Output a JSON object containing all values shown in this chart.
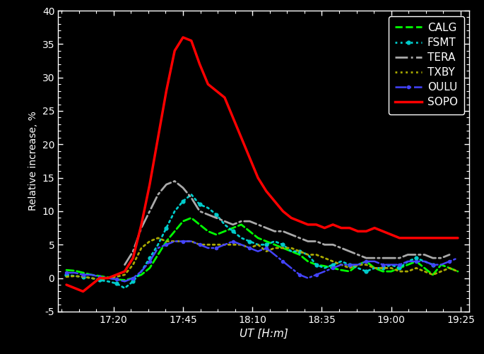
{
  "background_color": "#000000",
  "text_color": "#ffffff",
  "xlabel": "UT [H:m]",
  "ylabel": "Relative increase, %",
  "ylim": [
    -5,
    40
  ],
  "yticks": [
    -5,
    0,
    5,
    10,
    15,
    20,
    25,
    30,
    35,
    40
  ],
  "xtick_labels": [
    "17:20",
    "17:45",
    "18:10",
    "18:35",
    "19:00",
    "19:25"
  ],
  "xlim_min": 17.0,
  "xlim_max": 19.47,
  "series_order": [
    "CALG",
    "FSMT",
    "TERA",
    "TXBY",
    "OULU",
    "SOPO"
  ],
  "series": {
    "CALG": {
      "x": [
        17.05,
        17.1,
        17.15,
        17.2,
        17.25,
        17.3,
        17.35,
        17.4,
        17.45,
        17.5,
        17.55,
        17.6,
        17.65,
        17.7,
        17.75,
        17.8,
        17.85,
        17.9,
        17.95,
        18.0,
        18.05,
        18.1,
        18.15,
        18.2,
        18.25,
        18.3,
        18.35,
        18.4,
        18.45,
        18.5,
        18.55,
        18.6,
        18.65,
        18.7,
        18.75,
        18.8,
        18.85,
        18.9,
        18.95,
        19.0,
        19.05,
        19.1,
        19.15,
        19.2,
        19.25,
        19.3,
        19.35,
        19.4
      ],
      "y": [
        1.2,
        1.1,
        0.8,
        0.5,
        0.3,
        0.1,
        -0.2,
        -0.3,
        0.0,
        0.5,
        1.5,
        3.5,
        5.5,
        7.0,
        8.5,
        9.0,
        8.0,
        7.0,
        6.5,
        7.0,
        7.5,
        8.0,
        7.0,
        6.0,
        5.5,
        5.0,
        4.5,
        4.0,
        3.5,
        2.5,
        2.0,
        1.8,
        1.5,
        1.2,
        1.0,
        2.0,
        2.5,
        1.5,
        1.0,
        1.0,
        1.5,
        2.0,
        2.5,
        1.5,
        0.5,
        2.0,
        1.5,
        1.0
      ],
      "color": "#00ff00",
      "linestyle": "--",
      "linewidth": 2.0,
      "marker": "None",
      "markersize": 0
    },
    "FSMT": {
      "x": [
        17.05,
        17.1,
        17.15,
        17.2,
        17.25,
        17.3,
        17.35,
        17.4,
        17.45,
        17.5,
        17.55,
        17.6,
        17.65,
        17.7,
        17.75,
        17.8,
        17.85,
        17.9,
        17.95,
        18.0,
        18.05,
        18.1,
        18.15,
        18.2,
        18.25,
        18.3,
        18.35,
        18.4,
        18.45,
        18.5,
        18.55,
        18.6,
        18.65,
        18.7,
        18.75,
        18.8,
        18.85,
        18.9,
        18.95,
        19.0,
        19.05,
        19.1,
        19.15,
        19.2,
        19.25
      ],
      "y": [
        0.5,
        0.3,
        0.2,
        0.0,
        -0.3,
        -0.5,
        -0.8,
        -1.5,
        -0.5,
        1.0,
        3.0,
        5.0,
        7.5,
        10.0,
        11.5,
        12.5,
        11.0,
        10.5,
        9.5,
        8.0,
        7.0,
        6.0,
        5.5,
        5.0,
        5.0,
        5.5,
        5.0,
        4.0,
        4.0,
        3.5,
        2.0,
        1.5,
        2.0,
        2.5,
        2.0,
        1.5,
        1.0,
        1.5,
        1.5,
        2.0,
        1.5,
        2.5,
        3.0,
        2.5,
        2.0
      ],
      "color": "#00cccc",
      "linestyle": ":",
      "linewidth": 2.0,
      "marker": "o",
      "markersize": 3.5
    },
    "TERA": {
      "x": [
        17.4,
        17.45,
        17.5,
        17.55,
        17.6,
        17.65,
        17.7,
        17.75,
        17.8,
        17.85,
        17.9,
        17.95,
        18.0,
        18.05,
        18.1,
        18.15,
        18.2,
        18.25,
        18.3,
        18.35,
        18.4,
        18.45,
        18.5,
        18.55,
        18.6,
        18.65,
        18.7,
        18.75,
        18.8,
        18.85,
        18.9,
        18.95,
        19.0,
        19.05,
        19.1,
        19.15,
        19.2,
        19.25,
        19.3,
        19.35
      ],
      "y": [
        2.0,
        4.0,
        7.5,
        10.0,
        12.5,
        14.0,
        14.5,
        13.5,
        12.0,
        10.0,
        9.5,
        9.0,
        8.5,
        8.0,
        8.5,
        8.5,
        8.0,
        7.5,
        7.0,
        7.0,
        6.5,
        6.0,
        5.5,
        5.5,
        5.0,
        5.0,
        4.5,
        4.0,
        3.5,
        3.0,
        3.0,
        3.0,
        3.0,
        3.0,
        3.5,
        3.5,
        3.5,
        3.0,
        3.0,
        3.5
      ],
      "color": "#aaaaaa",
      "linestyle": "-.",
      "linewidth": 2.0,
      "marker": "None",
      "markersize": 0
    },
    "TXBY": {
      "x": [
        17.05,
        17.1,
        17.15,
        17.2,
        17.25,
        17.3,
        17.35,
        17.4,
        17.45,
        17.5,
        17.55,
        17.6,
        17.65,
        17.7,
        17.75,
        17.8,
        17.85,
        17.9,
        17.95,
        18.0,
        18.05,
        18.1,
        18.15,
        18.2,
        18.25,
        18.3,
        18.35,
        18.4,
        18.45,
        18.5,
        18.55,
        18.6,
        18.65,
        18.7,
        18.75,
        18.8,
        18.85,
        18.9,
        18.95,
        19.0,
        19.05,
        19.1,
        19.15,
        19.2,
        19.25,
        19.3,
        19.35,
        19.4
      ],
      "y": [
        0.2,
        0.3,
        0.2,
        0.0,
        -0.2,
        0.0,
        0.2,
        0.5,
        2.0,
        4.5,
        5.5,
        6.0,
        5.5,
        5.5,
        5.5,
        5.5,
        5.0,
        5.0,
        5.0,
        5.0,
        5.0,
        5.0,
        4.5,
        5.0,
        4.0,
        4.5,
        4.5,
        4.5,
        4.0,
        3.5,
        3.5,
        3.0,
        2.5,
        2.0,
        1.5,
        2.0,
        2.0,
        1.5,
        1.5,
        1.5,
        1.0,
        1.0,
        1.5,
        1.0,
        0.5,
        1.0,
        1.5,
        1.0
      ],
      "color": "#aaaa00",
      "linestyle": ":",
      "linewidth": 2.0,
      "marker": "None",
      "markersize": 0
    },
    "OULU": {
      "x": [
        17.05,
        17.1,
        17.15,
        17.2,
        17.25,
        17.3,
        17.35,
        17.4,
        17.45,
        17.5,
        17.55,
        17.6,
        17.65,
        17.7,
        17.75,
        17.8,
        17.85,
        17.9,
        17.95,
        18.0,
        18.05,
        18.1,
        18.15,
        18.2,
        18.25,
        18.3,
        18.35,
        18.4,
        18.45,
        18.5,
        18.55,
        18.6,
        18.65,
        18.7,
        18.75,
        18.8,
        18.85,
        18.9,
        18.95,
        19.0,
        19.05,
        19.1,
        19.15,
        19.2,
        19.25,
        19.3,
        19.35,
        19.4
      ],
      "y": [
        0.8,
        0.8,
        0.5,
        0.5,
        0.2,
        0.0,
        -0.2,
        -0.5,
        0.0,
        1.0,
        2.5,
        4.5,
        5.0,
        5.5,
        5.5,
        5.5,
        5.0,
        4.5,
        4.5,
        5.0,
        5.5,
        5.0,
        4.5,
        4.0,
        4.5,
        3.5,
        2.5,
        1.5,
        0.5,
        0.0,
        0.5,
        1.0,
        1.5,
        2.0,
        2.0,
        2.0,
        2.5,
        2.5,
        2.0,
        2.0,
        2.0,
        2.5,
        2.5,
        2.5,
        2.0,
        2.0,
        2.5,
        3.0
      ],
      "color": "#4444ff",
      "linestyle": "-.",
      "linewidth": 1.8,
      "marker": "o",
      "markersize": 3
    },
    "SOPO": {
      "x": [
        17.05,
        17.1,
        17.15,
        17.2,
        17.25,
        17.3,
        17.35,
        17.4,
        17.45,
        17.5,
        17.55,
        17.6,
        17.65,
        17.7,
        17.75,
        17.8,
        17.85,
        17.9,
        17.95,
        18.0,
        18.05,
        18.1,
        18.15,
        18.2,
        18.25,
        18.3,
        18.35,
        18.4,
        18.45,
        18.5,
        18.55,
        18.6,
        18.65,
        18.7,
        18.75,
        18.8,
        18.85,
        18.9,
        18.95,
        19.0,
        19.05,
        19.1,
        19.15,
        19.2,
        19.25,
        19.3,
        19.35,
        19.4
      ],
      "y": [
        -1.0,
        -1.5,
        -2.0,
        -1.0,
        0.0,
        0.0,
        0.5,
        1.0,
        3.0,
        8.0,
        14.0,
        21.0,
        28.0,
        34.0,
        36.0,
        35.5,
        32.0,
        29.0,
        28.0,
        27.0,
        24.0,
        21.0,
        18.0,
        15.0,
        13.0,
        11.5,
        10.0,
        9.0,
        8.5,
        8.0,
        8.0,
        7.5,
        8.0,
        7.5,
        7.5,
        7.0,
        7.0,
        7.5,
        7.0,
        6.5,
        6.0,
        6.0,
        6.0,
        6.0,
        6.0,
        6.0,
        6.0,
        6.0
      ],
      "color": "#ff0000",
      "linestyle": "-",
      "linewidth": 2.5,
      "marker": "None",
      "markersize": 0
    }
  }
}
